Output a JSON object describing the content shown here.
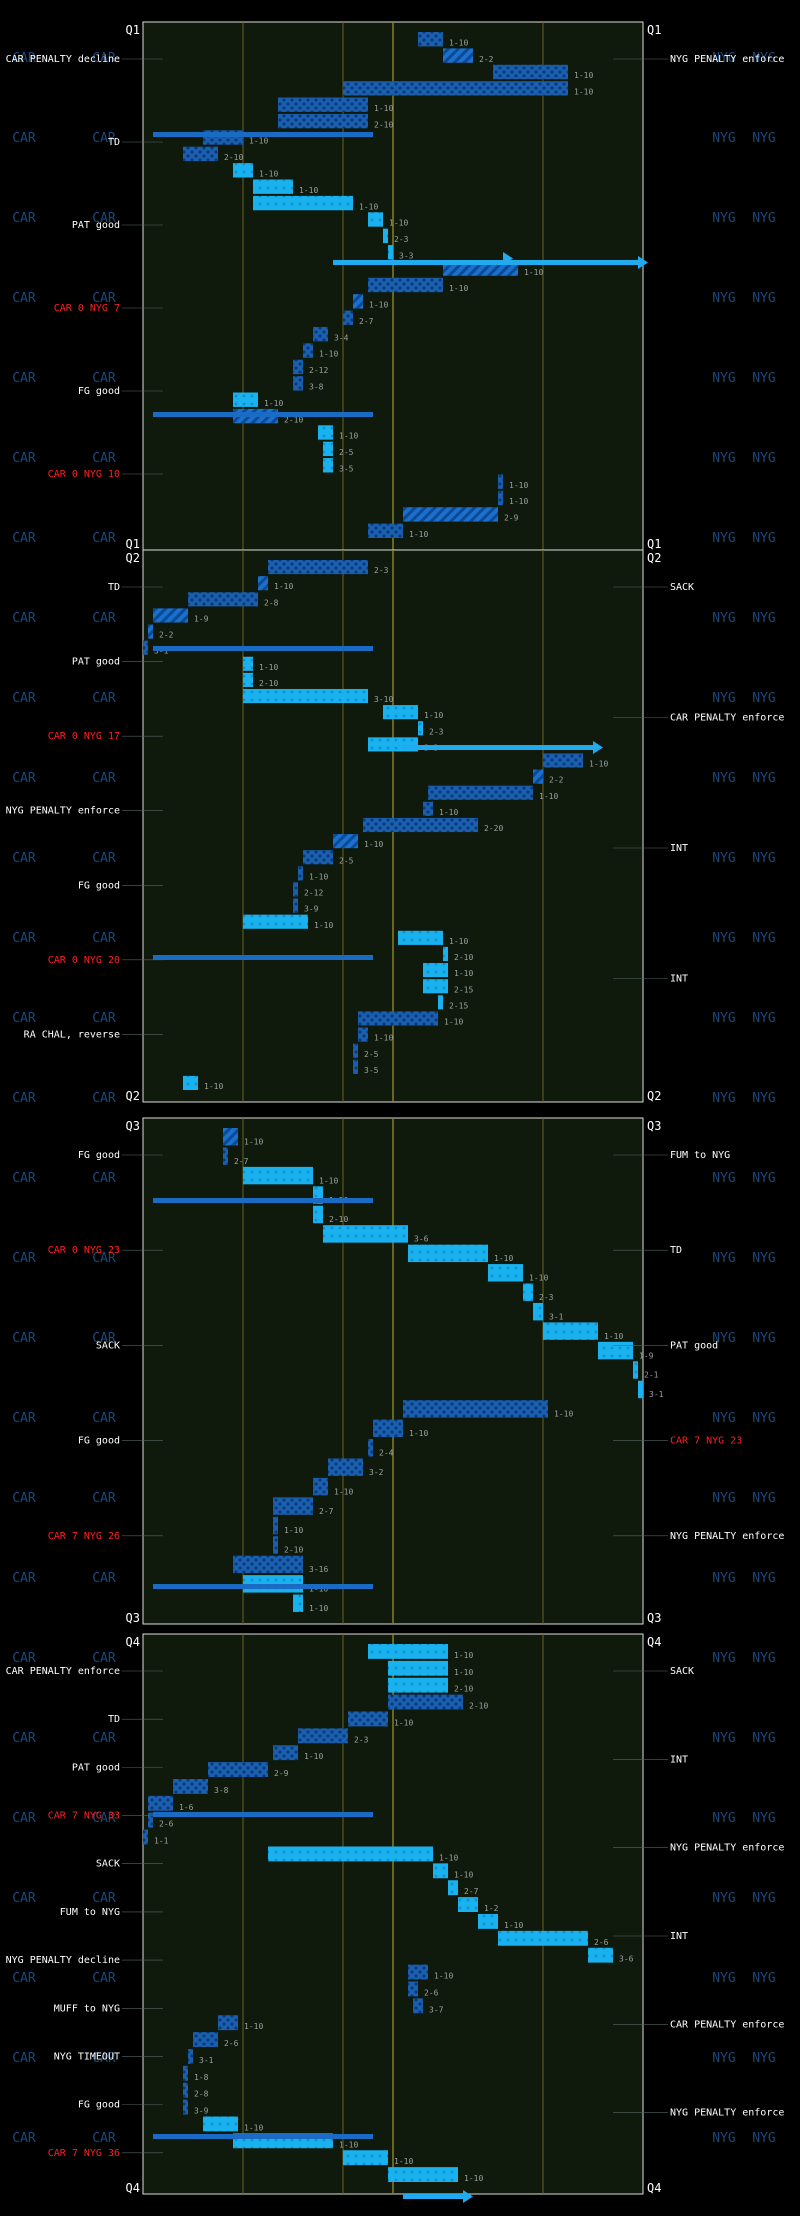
{
  "chart_data": {
    "type": "football-drive-chart",
    "teams": {
      "home": "CAR",
      "away": "NYG"
    },
    "quarters": [
      {
        "label": "Q1",
        "plays": [
          {
            "dn": "1-10",
            "y0": 55,
            "y1": 60,
            "t": "run"
          },
          {
            "dn": "2-2",
            "y0": 60,
            "y1": 66,
            "t": "pass"
          },
          {
            "dn": "1-10",
            "y0": 70,
            "y1": 85,
            "t": "run"
          },
          {
            "dn": "1-10",
            "y0": 40,
            "y1": 85,
            "t": "run"
          },
          {
            "dn": "1-10",
            "y0": 27,
            "y1": 45,
            "t": "run"
          },
          {
            "dn": "2-10",
            "y0": 27,
            "y1": 45,
            "t": "run"
          },
          {
            "dn": "1-10",
            "y0": 12,
            "y1": 20,
            "t": "run"
          },
          {
            "dn": "2-10",
            "y0": 8,
            "y1": 15,
            "t": "run"
          },
          {
            "dn": "1-10",
            "y0": 18,
            "y1": 22,
            "t": "short"
          },
          {
            "dn": "1-10",
            "y0": 22,
            "y1": 30,
            "t": "short"
          },
          {
            "dn": "1-10",
            "y0": 22,
            "y1": 42,
            "t": "short"
          },
          {
            "dn": "1-10",
            "y0": 45,
            "y1": 48,
            "t": "short"
          },
          {
            "dn": "2-3",
            "y0": 48,
            "y1": 49,
            "t": "short"
          },
          {
            "dn": "3-3",
            "y0": 49,
            "y1": 50,
            "t": "short"
          },
          {
            "dn": "1-10",
            "y0": 60,
            "y1": 75,
            "t": "pass"
          },
          {
            "dn": "1-10",
            "y0": 45,
            "y1": 60,
            "t": "run"
          },
          {
            "dn": "1-10",
            "y0": 42,
            "y1": 44,
            "t": "pass"
          },
          {
            "dn": "2-7",
            "y0": 40,
            "y1": 42,
            "t": "run"
          },
          {
            "dn": "3-4",
            "y0": 34,
            "y1": 37,
            "t": "run"
          },
          {
            "dn": "1-10",
            "y0": 32,
            "y1": 34,
            "t": "run"
          },
          {
            "dn": "2-12",
            "y0": 30,
            "y1": 32,
            "t": "run"
          },
          {
            "dn": "3-8",
            "y0": 30,
            "y1": 32,
            "t": "run"
          },
          {
            "dn": "1-10",
            "y0": 18,
            "y1": 23,
            "t": "short"
          },
          {
            "dn": "2-10",
            "y0": 18,
            "y1": 27,
            "t": "pass"
          },
          {
            "dn": "1-10",
            "y0": 35,
            "y1": 38,
            "t": "short"
          },
          {
            "dn": "2-5",
            "y0": 36,
            "y1": 38,
            "t": "short"
          },
          {
            "dn": "3-5",
            "y0": 36,
            "y1": 38,
            "t": "short"
          },
          {
            "dn": "1-10",
            "y0": 71,
            "y1": 72,
            "t": "run"
          },
          {
            "dn": "1-10",
            "y0": 71,
            "y1": 72,
            "t": "run"
          },
          {
            "dn": "2-9",
            "y0": 52,
            "y1": 71,
            "t": "pass"
          },
          {
            "dn": "1-10",
            "y0": 45,
            "y1": 52,
            "t": "run"
          }
        ]
      },
      {
        "label": "Q2",
        "plays": [
          {
            "dn": "2-3",
            "y0": 25,
            "y1": 45,
            "t": "run"
          },
          {
            "dn": "1-10",
            "y0": 23,
            "y1": 25,
            "t": "pass"
          },
          {
            "dn": "2-8",
            "y0": 9,
            "y1": 23,
            "t": "run"
          },
          {
            "dn": "1-9",
            "y0": 2,
            "y1": 9,
            "t": "pass"
          },
          {
            "dn": "2-2",
            "y0": 1,
            "y1": 2,
            "t": "pass"
          },
          {
            "dn": "3-1",
            "y0": 0,
            "y1": 1,
            "t": "run"
          },
          {
            "dn": "1-10",
            "y0": 20,
            "y1": 22,
            "t": "short"
          },
          {
            "dn": "2-10",
            "y0": 20,
            "y1": 22,
            "t": "short"
          },
          {
            "dn": "3-10",
            "y0": 20,
            "y1": 45,
            "t": "short"
          },
          {
            "dn": "1-10",
            "y0": 48,
            "y1": 55,
            "t": "short"
          },
          {
            "dn": "2-3",
            "y0": 55,
            "y1": 56,
            "t": "short"
          },
          {
            "dn": "3-3",
            "y0": 45,
            "y1": 55,
            "t": "short"
          },
          {
            "dn": "1-10",
            "y0": 80,
            "y1": 88,
            "t": "run"
          },
          {
            "dn": "2-2",
            "y0": 78,
            "y1": 80,
            "t": "pass"
          },
          {
            "dn": "1-10",
            "y0": 57,
            "y1": 78,
            "t": "run"
          },
          {
            "dn": "1-10",
            "y0": 56,
            "y1": 58,
            "t": "run"
          },
          {
            "dn": "2-20",
            "y0": 44,
            "y1": 67,
            "t": "run"
          },
          {
            "dn": "1-10",
            "y0": 38,
            "y1": 43,
            "t": "pass"
          },
          {
            "dn": "2-5",
            "y0": 32,
            "y1": 38,
            "t": "run"
          },
          {
            "dn": "1-10",
            "y0": 31,
            "y1": 32,
            "t": "run"
          },
          {
            "dn": "2-12",
            "y0": 30,
            "y1": 31,
            "t": "run"
          },
          {
            "dn": "3-9",
            "y0": 30,
            "y1": 31,
            "t": "run"
          },
          {
            "dn": "1-10",
            "y0": 20,
            "y1": 33,
            "t": "short"
          },
          {
            "dn": "1-10",
            "y0": 51,
            "y1": 60,
            "t": "short"
          },
          {
            "dn": "2-10",
            "y0": 60,
            "y1": 61,
            "t": "short"
          },
          {
            "dn": "1-10",
            "y0": 56,
            "y1": 61,
            "t": "short"
          },
          {
            "dn": "2-15",
            "y0": 56,
            "y1": 61,
            "t": "short"
          },
          {
            "dn": "2-15",
            "y0": 59,
            "y1": 60,
            "t": "short"
          },
          {
            "dn": "1-10",
            "y0": 43,
            "y1": 59,
            "t": "run"
          },
          {
            "dn": "1-10",
            "y0": 43,
            "y1": 45,
            "t": "run"
          },
          {
            "dn": "2-5",
            "y0": 42,
            "y1": 43,
            "t": "run"
          },
          {
            "dn": "3-5",
            "y0": 42,
            "y1": 43,
            "t": "run"
          },
          {
            "dn": "1-10",
            "y0": 8,
            "y1": 11,
            "t": "short"
          }
        ]
      },
      {
        "label": "Q3",
        "plays": [
          {
            "dn": "1-10",
            "y0": 16,
            "y1": 19,
            "t": "pass"
          },
          {
            "dn": "2-7",
            "y0": 16,
            "y1": 17,
            "t": "run"
          },
          {
            "dn": "1-10",
            "y0": 20,
            "y1": 34,
            "t": "short"
          },
          {
            "dn": "1-10",
            "y0": 34,
            "y1": 36,
            "t": "short"
          },
          {
            "dn": "2-10",
            "y0": 34,
            "y1": 36,
            "t": "short"
          },
          {
            "dn": "3-6",
            "y0": 36,
            "y1": 53,
            "t": "short"
          },
          {
            "dn": "1-10",
            "y0": 53,
            "y1": 69,
            "t": "short"
          },
          {
            "dn": "1-10",
            "y0": 69,
            "y1": 76,
            "t": "short"
          },
          {
            "dn": "2-3",
            "y0": 76,
            "y1": 78,
            "t": "short"
          },
          {
            "dn": "3-1",
            "y0": 78,
            "y1": 80,
            "t": "short"
          },
          {
            "dn": "1-10",
            "y0": 80,
            "y1": 91,
            "t": "short"
          },
          {
            "dn": "1-9",
            "y0": 91,
            "y1": 98,
            "t": "short"
          },
          {
            "dn": "2-1",
            "y0": 98,
            "y1": 99,
            "t": "short"
          },
          {
            "dn": "3-1",
            "y0": 99,
            "y1": 100,
            "t": "short"
          },
          {
            "dn": "1-10",
            "y0": 52,
            "y1": 81,
            "t": "run"
          },
          {
            "dn": "1-10",
            "y0": 46,
            "y1": 52,
            "t": "run"
          },
          {
            "dn": "2-4",
            "y0": 45,
            "y1": 46,
            "t": "run"
          },
          {
            "dn": "3-2",
            "y0": 37,
            "y1": 44,
            "t": "run"
          },
          {
            "dn": "1-10",
            "y0": 34,
            "y1": 37,
            "t": "run"
          },
          {
            "dn": "2-7",
            "y0": 26,
            "y1": 34,
            "t": "run"
          },
          {
            "dn": "1-10",
            "y0": 26,
            "y1": 27,
            "t": "run"
          },
          {
            "dn": "2-10",
            "y0": 26,
            "y1": 27,
            "t": "run"
          },
          {
            "dn": "3-16",
            "y0": 18,
            "y1": 32,
            "t": "run"
          },
          {
            "dn": "1-10",
            "y0": 20,
            "y1": 32,
            "t": "short"
          },
          {
            "dn": "1-10",
            "y0": 30,
            "y1": 32,
            "t": "short"
          }
        ]
      },
      {
        "label": "Q4",
        "plays": [
          {
            "dn": "1-10",
            "y0": 45,
            "y1": 61,
            "t": "short"
          },
          {
            "dn": "1-10",
            "y0": 49,
            "y1": 61,
            "t": "short"
          },
          {
            "dn": "2-10",
            "y0": 49,
            "y1": 61,
            "t": "short"
          },
          {
            "dn": "2-10",
            "y0": 49,
            "y1": 64,
            "t": "run"
          },
          {
            "dn": "1-10",
            "y0": 41,
            "y1": 49,
            "t": "run"
          },
          {
            "dn": "2-3",
            "y0": 31,
            "y1": 41,
            "t": "run"
          },
          {
            "dn": "1-10",
            "y0": 26,
            "y1": 31,
            "t": "run"
          },
          {
            "dn": "2-9",
            "y0": 13,
            "y1": 25,
            "t": "run"
          },
          {
            "dn": "3-8",
            "y0": 6,
            "y1": 13,
            "t": "run"
          },
          {
            "dn": "1-6",
            "y0": 1,
            "y1": 6,
            "t": "run"
          },
          {
            "dn": "2-6",
            "y0": 1,
            "y1": 2,
            "t": "run"
          },
          {
            "dn": "1-1",
            "y0": 0,
            "y1": 1,
            "t": "run"
          },
          {
            "dn": "1-10",
            "y0": 25,
            "y1": 58,
            "t": "short"
          },
          {
            "dn": "1-10",
            "y0": 58,
            "y1": 61,
            "t": "short"
          },
          {
            "dn": "2-7",
            "y0": 61,
            "y1": 63,
            "t": "short"
          },
          {
            "dn": "1-2",
            "y0": 63,
            "y1": 67,
            "t": "short"
          },
          {
            "dn": "1-10",
            "y0": 67,
            "y1": 71,
            "t": "short"
          },
          {
            "dn": "2-6",
            "y0": 71,
            "y1": 89,
            "t": "short"
          },
          {
            "dn": "3-6",
            "y0": 89,
            "y1": 94,
            "t": "short"
          },
          {
            "dn": "1-10",
            "y0": 53,
            "y1": 57,
            "t": "run"
          },
          {
            "dn": "2-6",
            "y0": 53,
            "y1": 55,
            "t": "run"
          },
          {
            "dn": "3-7",
            "y0": 54,
            "y1": 56,
            "t": "run"
          },
          {
            "dn": "1-10",
            "y0": 15,
            "y1": 19,
            "t": "run"
          },
          {
            "dn": "2-6",
            "y0": 10,
            "y1": 15,
            "t": "run"
          },
          {
            "dn": "3-1",
            "y0": 9,
            "y1": 10,
            "t": "run"
          },
          {
            "dn": "1-8",
            "y0": 8,
            "y1": 9,
            "t": "run"
          },
          {
            "dn": "2-8",
            "y0": 8,
            "y1": 9,
            "t": "run"
          },
          {
            "dn": "3-9",
            "y0": 8,
            "y1": 9,
            "t": "run"
          },
          {
            "dn": "1-10",
            "y0": 12,
            "y1": 19,
            "t": "short"
          },
          {
            "dn": "1-10",
            "y0": 18,
            "y1": 38,
            "t": "short"
          },
          {
            "dn": "1-10",
            "y0": 40,
            "y1": 49,
            "t": "short"
          },
          {
            "dn": "1-10",
            "y0": 49,
            "y1": 63,
            "t": "short"
          }
        ]
      }
    ],
    "events": {
      "left": [
        {
          "q": 0,
          "text": "CAR PENALTY decline",
          "color": "#ffffff"
        },
        {
          "q": 0,
          "text": "TD",
          "color": "#ffffff"
        },
        {
          "q": 0,
          "text": "PAT good",
          "color": "#ffffff"
        },
        {
          "q": 0,
          "text": "CAR 0 NYG 7",
          "color": "#ff2020"
        },
        {
          "q": 0,
          "text": "FG good",
          "color": "#ffffff"
        },
        {
          "q": 0,
          "text": "CAR 0 NYG 10",
          "color": "#ff2020"
        },
        {
          "q": 1,
          "text": "TD",
          "color": "#ffffff"
        },
        {
          "q": 1,
          "text": "PAT good",
          "color": "#ffffff"
        },
        {
          "q": 1,
          "text": "CAR 0 NYG 17",
          "color": "#ff2020"
        },
        {
          "q": 1,
          "text": "NYG PENALTY enforce",
          "color": "#ffffff"
        },
        {
          "q": 1,
          "text": "FG good",
          "color": "#ffffff"
        },
        {
          "q": 1,
          "text": "CAR 0 NYG 20",
          "color": "#ff2020"
        },
        {
          "q": 1,
          "text": "RA CHAL, reverse",
          "color": "#ffffff"
        },
        {
          "q": 2,
          "text": "FG good",
          "color": "#ffffff"
        },
        {
          "q": 2,
          "text": "CAR 0 NYG 23",
          "color": "#ff2020"
        },
        {
          "q": 2,
          "text": "SACK",
          "color": "#ffffff"
        },
        {
          "q": 2,
          "text": "FG good",
          "color": "#ffffff"
        },
        {
          "q": 2,
          "text": "CAR 7 NYG 26",
          "color": "#ff2020"
        },
        {
          "q": 3,
          "text": "CAR PENALTY enforce",
          "color": "#ffffff"
        },
        {
          "q": 3,
          "text": "TD",
          "color": "#ffffff"
        },
        {
          "q": 3,
          "text": "PAT good",
          "color": "#ffffff"
        },
        {
          "q": 3,
          "text": "CAR 7 NYG 33",
          "color": "#ff2020"
        },
        {
          "q": 3,
          "text": "SACK",
          "color": "#ffffff"
        },
        {
          "q": 3,
          "text": "FUM to NYG",
          "color": "#ffffff"
        },
        {
          "q": 3,
          "text": "NYG PENALTY decline",
          "color": "#ffffff"
        },
        {
          "q": 3,
          "text": "MUFF to NYG",
          "color": "#ffffff"
        },
        {
          "q": 3,
          "text": "NYG TIMEOUT",
          "color": "#ffffff"
        },
        {
          "q": 3,
          "text": "FG good",
          "color": "#ffffff"
        },
        {
          "q": 3,
          "text": "CAR 7 NYG 36",
          "color": "#ff2020"
        }
      ],
      "right": [
        {
          "q": 0,
          "text": "NYG PENALTY enforce",
          "color": "#ffffff"
        },
        {
          "q": 1,
          "text": "SACK",
          "color": "#ffffff"
        },
        {
          "q": 1,
          "text": "CAR PENALTY enforce",
          "color": "#ffffff"
        },
        {
          "q": 1,
          "text": "INT",
          "color": "#ffffff"
        },
        {
          "q": 1,
          "text": "INT",
          "color": "#ffffff"
        },
        {
          "q": 2,
          "text": "FUM to NYG",
          "color": "#ffffff"
        },
        {
          "q": 2,
          "text": "TD",
          "color": "#ffffff"
        },
        {
          "q": 2,
          "text": "PAT good",
          "color": "#ffffff"
        },
        {
          "q": 2,
          "text": "CAR 7 NYG 23",
          "color": "#ff2020"
        },
        {
          "q": 2,
          "text": "NYG PENALTY enforce",
          "color": "#ffffff"
        },
        {
          "q": 3,
          "text": "SACK",
          "color": "#ffffff"
        },
        {
          "q": 3,
          "text": "INT",
          "color": "#ffffff"
        },
        {
          "q": 3,
          "text": "NYG PENALTY enforce",
          "color": "#ffffff"
        },
        {
          "q": 3,
          "text": "INT",
          "color": "#ffffff"
        },
        {
          "q": 3,
          "text": "CAR PENALTY enforce",
          "color": "#ffffff"
        },
        {
          "q": 3,
          "text": "NYG PENALTY enforce",
          "color": "#ffffff"
        }
      ]
    },
    "colors": {
      "field": "#0f1a0c",
      "yard_line": "#6a6420",
      "midfield": "#8a8020",
      "car": "#1e5ca0",
      "nyg": "#0070c0",
      "bar": "#1a6bc4",
      "bright": "#22aaee",
      "label_white": "#ffffff",
      "label_red": "#ff2020",
      "dn_text": "#9aa0a0"
    }
  }
}
